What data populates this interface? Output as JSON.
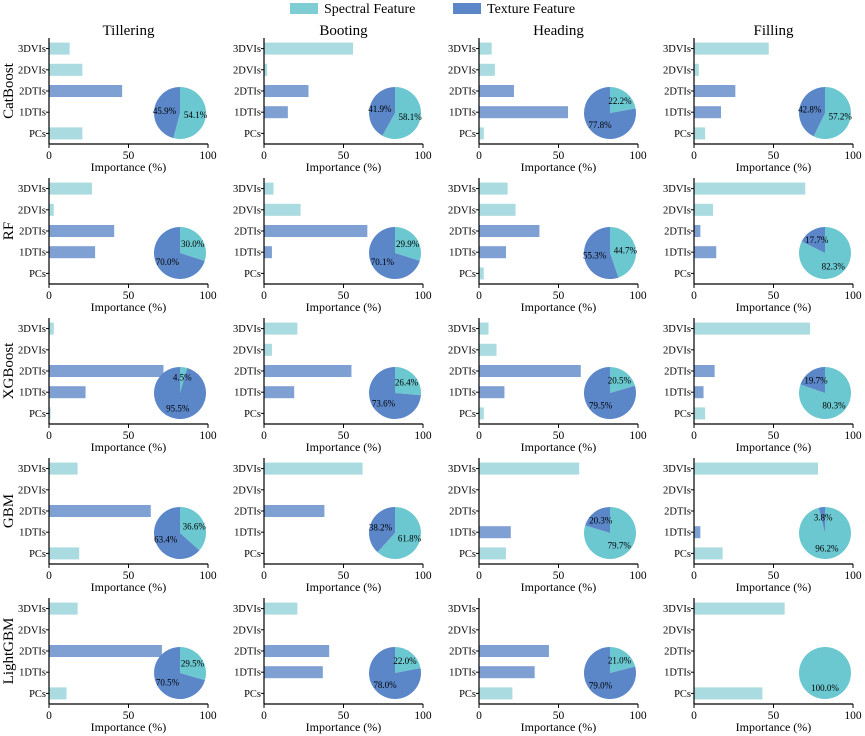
{
  "legend": [
    {
      "name": "Spectral Feature",
      "color": "#7ecdd3"
    },
    {
      "name": "Texture Feature",
      "color": "#5b86c8"
    }
  ],
  "colors": {
    "spectral_bar": "#a9dbe0",
    "texture_bar": "#7fa0d2",
    "spectral_pie": "#6cc8d0",
    "texture_pie": "#5b86c8",
    "axis": "#000000"
  },
  "columns": [
    "Tillering",
    "Booting",
    "Heading",
    "Filling"
  ],
  "rows": [
    "CatBoost",
    "RF",
    "XGBoost",
    "GBM",
    "LightGBM"
  ],
  "chart_data": {
    "type": "bar",
    "orientation": "horizontal",
    "categories": [
      "3DVIs",
      "2DVIs",
      "2DTIs",
      "1DTIs",
      "PCs"
    ],
    "category_types": [
      "spectral",
      "spectral",
      "texture",
      "texture",
      "spectral"
    ],
    "xlabel": "Importance (%)",
    "xlim": [
      0,
      100
    ],
    "xticks": [
      0,
      50,
      100
    ],
    "panels": [
      [
        {
          "values": [
            13,
            21,
            46,
            0,
            21
          ],
          "pie": [
            54.1,
            45.9
          ],
          "pie_labels": [
            "54.1%",
            "45.9%"
          ]
        },
        {
          "values": [
            56,
            2,
            28,
            15,
            0
          ],
          "pie": [
            58.1,
            41.9
          ],
          "pie_labels": [
            "58.1%",
            "41.9%"
          ]
        },
        {
          "values": [
            8,
            10,
            22,
            56,
            3
          ],
          "pie": [
            22.2,
            77.8
          ],
          "pie_labels": [
            "22.2%",
            "77.8%"
          ]
        },
        {
          "values": [
            47,
            3,
            26,
            17,
            7
          ],
          "pie": [
            57.2,
            42.8
          ],
          "pie_labels": [
            "57.2%",
            "42.8%"
          ]
        }
      ],
      [
        {
          "values": [
            27,
            3,
            41,
            29,
            0
          ],
          "pie": [
            30.0,
            70.0
          ],
          "pie_labels": [
            "30.0%",
            "70.0%"
          ]
        },
        {
          "values": [
            6,
            23,
            65,
            5,
            0
          ],
          "pie": [
            29.9,
            70.1
          ],
          "pie_labels": [
            "29.9%",
            "70.1%"
          ]
        },
        {
          "values": [
            18,
            23,
            38,
            17,
            3
          ],
          "pie": [
            44.7,
            55.3
          ],
          "pie_labels": [
            "44.7%",
            "55.3%"
          ]
        },
        {
          "values": [
            70,
            12,
            4,
            14,
            0
          ],
          "pie": [
            82.3,
            17.7
          ],
          "pie_labels": [
            "82.3%",
            "17.7%"
          ]
        }
      ],
      [
        {
          "values": [
            3,
            0,
            72,
            23,
            1
          ],
          "pie": [
            4.5,
            95.5
          ],
          "pie_labels": [
            "4.5%",
            "95.5%"
          ]
        },
        {
          "values": [
            21,
            5,
            55,
            19,
            0
          ],
          "pie": [
            26.4,
            73.6
          ],
          "pie_labels": [
            "26.4%",
            "73.6%"
          ]
        },
        {
          "values": [
            6,
            11,
            64,
            16,
            3
          ],
          "pie": [
            20.5,
            79.5
          ],
          "pie_labels": [
            "20.5%",
            "79.5%"
          ]
        },
        {
          "values": [
            73,
            0,
            13,
            6,
            7
          ],
          "pie": [
            80.3,
            19.7
          ],
          "pie_labels": [
            "80.3%",
            "19.7%"
          ]
        }
      ],
      [
        {
          "values": [
            18,
            0,
            64,
            0,
            19
          ],
          "pie": [
            36.6,
            63.4
          ],
          "pie_labels": [
            "36.6%",
            "63.4%"
          ]
        },
        {
          "values": [
            62,
            0,
            38,
            0,
            0
          ],
          "pie": [
            61.8,
            38.2
          ],
          "pie_labels": [
            "61.8%",
            "38.2%"
          ]
        },
        {
          "values": [
            63,
            0,
            0,
            20,
            17
          ],
          "pie": [
            79.7,
            20.3
          ],
          "pie_labels": [
            "79.7%",
            "20.3%"
          ]
        },
        {
          "values": [
            78,
            0,
            0,
            4,
            18
          ],
          "pie": [
            96.2,
            3.8
          ],
          "pie_labels": [
            "96.2%",
            "3.8%"
          ]
        }
      ],
      [
        {
          "values": [
            18,
            0,
            71,
            0,
            11
          ],
          "pie": [
            29.5,
            70.5
          ],
          "pie_labels": [
            "29.5%",
            "70.5%"
          ]
        },
        {
          "values": [
            21,
            0,
            41,
            37,
            0
          ],
          "pie": [
            22.0,
            78.0
          ],
          "pie_labels": [
            "22.0%",
            "78.0%"
          ]
        },
        {
          "values": [
            0,
            0,
            44,
            35,
            21
          ],
          "pie": [
            21.0,
            79.0
          ],
          "pie_labels": [
            "21.0%",
            "79.0%"
          ]
        },
        {
          "values": [
            57,
            0,
            0,
            0,
            43
          ],
          "pie": [
            100.0,
            0.0
          ],
          "pie_labels": [
            "100.0%"
          ]
        }
      ]
    ]
  }
}
